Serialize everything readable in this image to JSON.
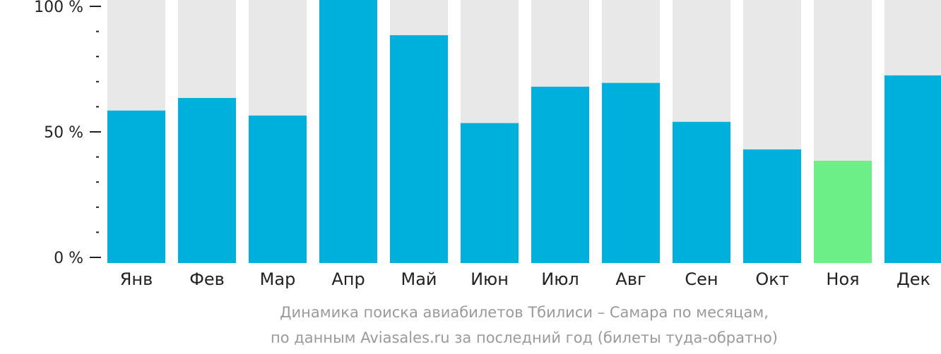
{
  "chart_data": {
    "type": "bar",
    "categories": [
      "Янв",
      "Фев",
      "Мар",
      "Апр",
      "Май",
      "Июн",
      "Июл",
      "Авг",
      "Сен",
      "Окт",
      "Ноя",
      "Дек"
    ],
    "values": [
      58.5,
      63.5,
      56.5,
      104,
      88.5,
      53.5,
      68,
      69.5,
      54,
      43,
      38.5,
      72.5
    ],
    "highlight_index": 10,
    "ylim": [
      0,
      100
    ],
    "yticks": [
      {
        "value": 100,
        "label": "100 %"
      },
      {
        "value": 50,
        "label": "50 %"
      },
      {
        "value": 0,
        "label": "0 %"
      }
    ],
    "minor_tick_step": 10,
    "colors": {
      "bar": "#00b0dc",
      "highlight": "#6cef86",
      "background_bar": "#e8e8e8",
      "axis": "#222222",
      "caption": "#9a9a9a"
    },
    "caption_lines": [
      "Динамика поиска авиабилетов Тбилиси – Самара по месяцам,",
      "по данным Aviasales.ru за последний год (билеты туда-обратно)"
    ]
  }
}
